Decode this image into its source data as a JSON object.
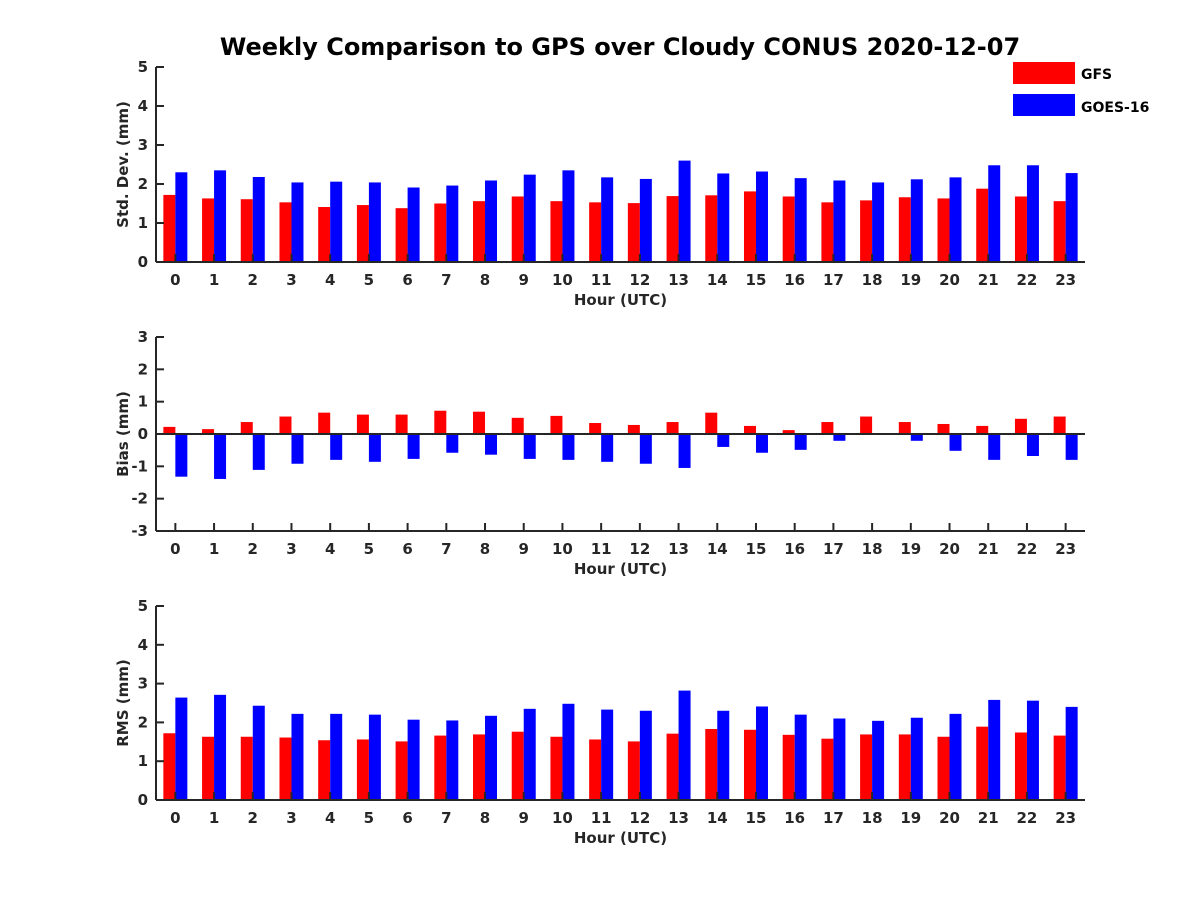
{
  "title": "Weekly Comparison to GPS over Cloudy CONUS 2020-12-07",
  "legend": [
    {
      "name": "GFS",
      "color": "#ff0000"
    },
    {
      "name": "GOES-16",
      "color": "#0000ff"
    }
  ],
  "chart_data": [
    {
      "type": "bar",
      "title": "",
      "xlabel": "Hour (UTC)",
      "ylabel": "Std. Dev. (mm)",
      "ylim": [
        0,
        5
      ],
      "yticks": [
        "0",
        "1",
        "2",
        "3",
        "4",
        "5"
      ],
      "categories": [
        "0",
        "1",
        "2",
        "3",
        "4",
        "5",
        "6",
        "7",
        "8",
        "9",
        "10",
        "11",
        "12",
        "13",
        "14",
        "15",
        "16",
        "17",
        "18",
        "19",
        "20",
        "21",
        "22",
        "23"
      ],
      "series": [
        {
          "name": "GFS",
          "color": "#ff0000",
          "values": [
            1.72,
            1.63,
            1.61,
            1.53,
            1.41,
            1.46,
            1.38,
            1.5,
            1.56,
            1.68,
            1.56,
            1.53,
            1.51,
            1.69,
            1.71,
            1.81,
            1.68,
            1.53,
            1.58,
            1.66,
            1.63,
            1.88,
            1.68,
            1.56
          ]
        },
        {
          "name": "GOES-16",
          "color": "#0000ff",
          "values": [
            2.3,
            2.35,
            2.18,
            2.04,
            2.06,
            2.04,
            1.91,
            1.96,
            2.09,
            2.24,
            2.35,
            2.17,
            2.13,
            2.6,
            2.27,
            2.32,
            2.15,
            2.09,
            2.04,
            2.12,
            2.17,
            2.48,
            2.48,
            2.28
          ]
        }
      ]
    },
    {
      "type": "bar",
      "title": "",
      "xlabel": "Hour (UTC)",
      "ylabel": "Bias (mm)",
      "ylim": [
        -3,
        3
      ],
      "yticks": [
        "-3",
        "-2",
        "-1",
        "0",
        "1",
        "2",
        "3"
      ],
      "categories": [
        "0",
        "1",
        "2",
        "3",
        "4",
        "5",
        "6",
        "7",
        "8",
        "9",
        "10",
        "11",
        "12",
        "13",
        "14",
        "15",
        "16",
        "17",
        "18",
        "19",
        "20",
        "21",
        "22",
        "23"
      ],
      "series": [
        {
          "name": "GFS",
          "color": "#ff0000",
          "values": [
            0.22,
            0.15,
            0.37,
            0.54,
            0.66,
            0.6,
            0.6,
            0.72,
            0.69,
            0.5,
            0.56,
            0.34,
            0.28,
            0.37,
            0.66,
            0.25,
            0.12,
            0.37,
            0.54,
            0.37,
            0.31,
            0.25,
            0.47,
            0.54
          ]
        },
        {
          "name": "GOES-16",
          "color": "#0000ff",
          "values": [
            -1.32,
            -1.39,
            -1.11,
            -0.92,
            -0.8,
            -0.86,
            -0.77,
            -0.58,
            -0.64,
            -0.77,
            -0.8,
            -0.86,
            -0.92,
            -1.05,
            -0.4,
            -0.58,
            -0.49,
            -0.21,
            0.0,
            -0.21,
            -0.52,
            -0.8,
            -0.68,
            -0.8
          ]
        }
      ]
    },
    {
      "type": "bar",
      "title": "",
      "xlabel": "Hour (UTC)",
      "ylabel": "RMS (mm)",
      "ylim": [
        0,
        5
      ],
      "yticks": [
        "0",
        "1",
        "2",
        "3",
        "4",
        "5"
      ],
      "categories": [
        "0",
        "1",
        "2",
        "3",
        "4",
        "5",
        "6",
        "7",
        "8",
        "9",
        "10",
        "11",
        "12",
        "13",
        "14",
        "15",
        "16",
        "17",
        "18",
        "19",
        "20",
        "21",
        "22",
        "23"
      ],
      "series": [
        {
          "name": "GFS",
          "color": "#ff0000",
          "values": [
            1.72,
            1.63,
            1.63,
            1.61,
            1.54,
            1.56,
            1.51,
            1.66,
            1.69,
            1.76,
            1.63,
            1.56,
            1.51,
            1.71,
            1.83,
            1.81,
            1.68,
            1.58,
            1.69,
            1.69,
            1.63,
            1.89,
            1.74,
            1.66
          ]
        },
        {
          "name": "GOES-16",
          "color": "#0000ff",
          "values": [
            2.64,
            2.71,
            2.43,
            2.22,
            2.22,
            2.2,
            2.07,
            2.05,
            2.17,
            2.35,
            2.48,
            2.33,
            2.3,
            2.82,
            2.3,
            2.41,
            2.2,
            2.1,
            2.04,
            2.12,
            2.22,
            2.58,
            2.56,
            2.4
          ]
        }
      ]
    }
  ]
}
